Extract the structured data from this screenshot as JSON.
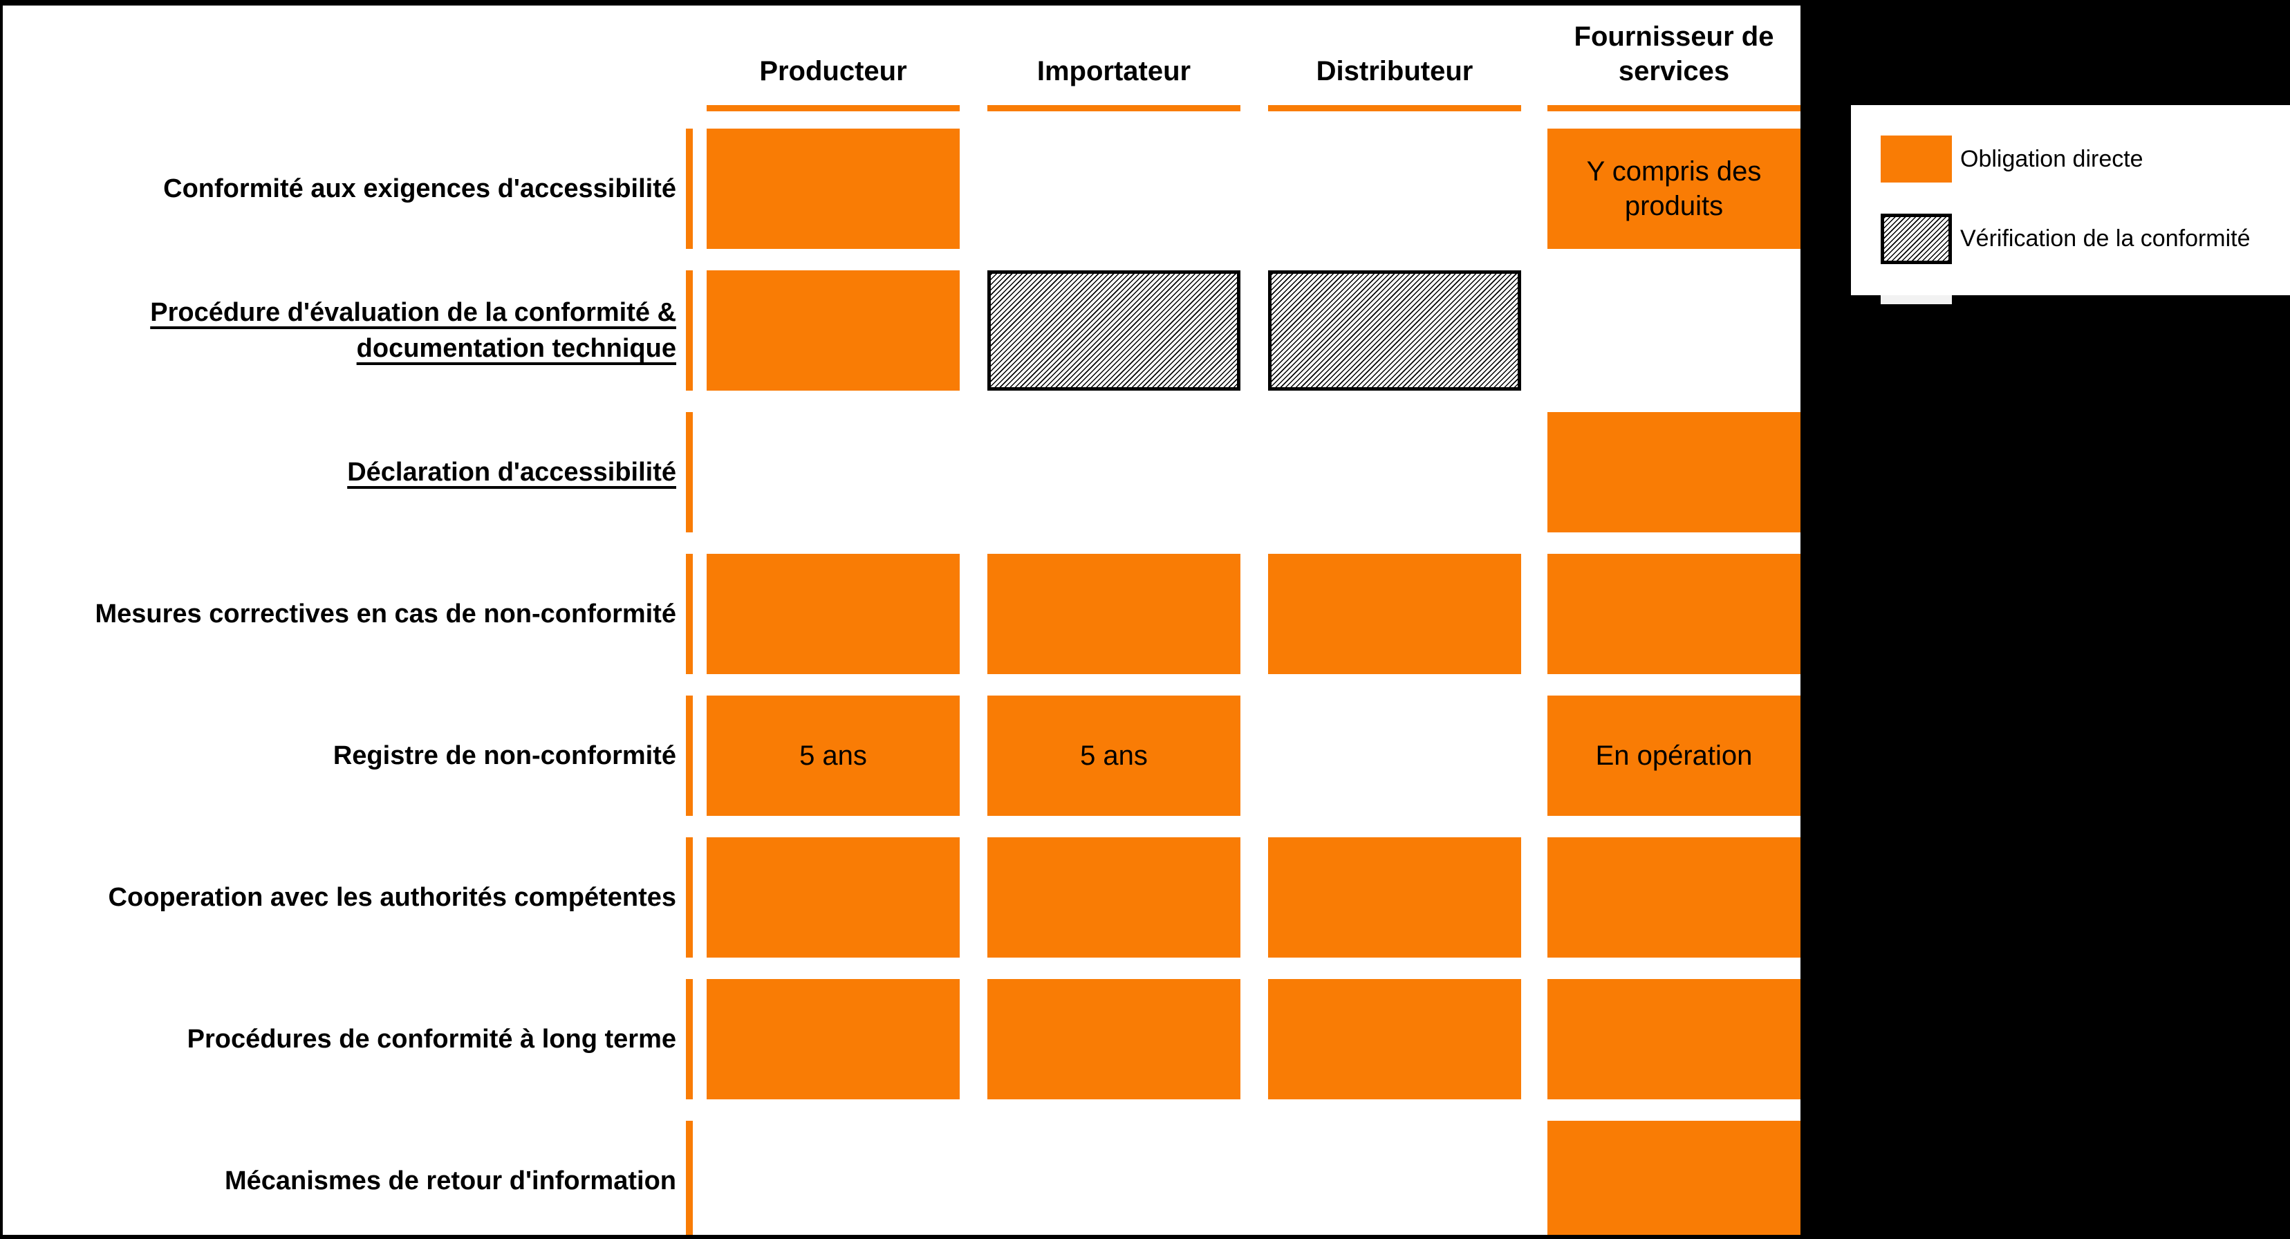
{
  "colors": {
    "accent_orange": "#f97c05",
    "background_black": "#000000",
    "panel_white": "#ffffff"
  },
  "columns": [
    {
      "label": "Producteur"
    },
    {
      "label": "Importateur"
    },
    {
      "label": "Distributeur"
    },
    {
      "label": "Fournisseur de services"
    }
  ],
  "rows": [
    {
      "label": "Conformité aux exigences d'accessibilité",
      "underlined": false,
      "cells": [
        {
          "type": "direct",
          "text": ""
        },
        {
          "type": "none",
          "text": ""
        },
        {
          "type": "none",
          "text": ""
        },
        {
          "type": "direct",
          "text": "Y compris des produits"
        }
      ]
    },
    {
      "label": "Procédure d'évaluation de la conformité & documentation technique",
      "underlined": true,
      "cells": [
        {
          "type": "direct",
          "text": ""
        },
        {
          "type": "verification",
          "text": ""
        },
        {
          "type": "verification",
          "text": ""
        },
        {
          "type": "none",
          "text": ""
        }
      ]
    },
    {
      "label": "Déclaration d'accessibilité",
      "underlined": true,
      "cells": [
        {
          "type": "none",
          "text": ""
        },
        {
          "type": "none",
          "text": ""
        },
        {
          "type": "none",
          "text": ""
        },
        {
          "type": "direct",
          "text": ""
        }
      ]
    },
    {
      "label": "Mesures correctives en cas de non-conformité",
      "underlined": false,
      "cells": [
        {
          "type": "direct",
          "text": ""
        },
        {
          "type": "direct",
          "text": ""
        },
        {
          "type": "direct",
          "text": ""
        },
        {
          "type": "direct",
          "text": ""
        }
      ]
    },
    {
      "label": "Registre de non-conformité",
      "underlined": false,
      "cells": [
        {
          "type": "direct",
          "text": "5 ans"
        },
        {
          "type": "direct",
          "text": "5 ans"
        },
        {
          "type": "none",
          "text": ""
        },
        {
          "type": "direct",
          "text": "En opération"
        }
      ]
    },
    {
      "label": "Cooperation avec les authorités compétentes",
      "underlined": false,
      "cells": [
        {
          "type": "direct",
          "text": ""
        },
        {
          "type": "direct",
          "text": ""
        },
        {
          "type": "direct",
          "text": ""
        },
        {
          "type": "direct",
          "text": ""
        }
      ]
    },
    {
      "label": "Procédures de conformité à long terme",
      "underlined": false,
      "cells": [
        {
          "type": "direct",
          "text": ""
        },
        {
          "type": "direct",
          "text": ""
        },
        {
          "type": "direct",
          "text": ""
        },
        {
          "type": "direct",
          "text": ""
        }
      ]
    },
    {
      "label": "Mécanismes de retour d'information",
      "underlined": false,
      "cells": [
        {
          "type": "none",
          "text": ""
        },
        {
          "type": "none",
          "text": ""
        },
        {
          "type": "none",
          "text": ""
        },
        {
          "type": "direct",
          "text": ""
        }
      ]
    }
  ],
  "legend": {
    "items": [
      {
        "type": "direct",
        "label": "Obligation directe"
      },
      {
        "type": "verification",
        "label": "Vérification de la conformité"
      }
    ]
  }
}
